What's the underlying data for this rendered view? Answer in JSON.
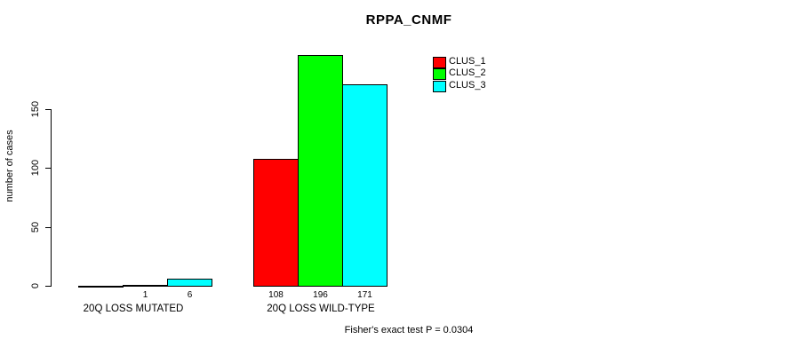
{
  "chart_data": {
    "type": "bar",
    "title": "RPPA_CNMF",
    "xlabel": "",
    "ylabel": "number of cases",
    "categories": [
      "20Q LOSS MUTATED",
      "20Q LOSS WILD-TYPE"
    ],
    "series": [
      {
        "name": "CLUS_1",
        "color": "#ff0000",
        "values": [
          0,
          108
        ]
      },
      {
        "name": "CLUS_2",
        "color": "#00ff00",
        "values": [
          1,
          196
        ]
      },
      {
        "name": "CLUS_3",
        "color": "#00ffff",
        "values": [
          6,
          171
        ]
      }
    ],
    "bar_value_labels": [
      [
        "",
        "1",
        "6"
      ],
      [
        "108",
        "196",
        "171"
      ]
    ],
    "yticks": [
      0,
      50,
      100,
      150
    ],
    "ytick_labels": [
      "0",
      "50",
      "100",
      "150"
    ],
    "ylim": [
      0,
      200
    ],
    "grid": false,
    "legend_position": "top-right",
    "annotation": "Fisher's exact test P = 0.0304"
  }
}
